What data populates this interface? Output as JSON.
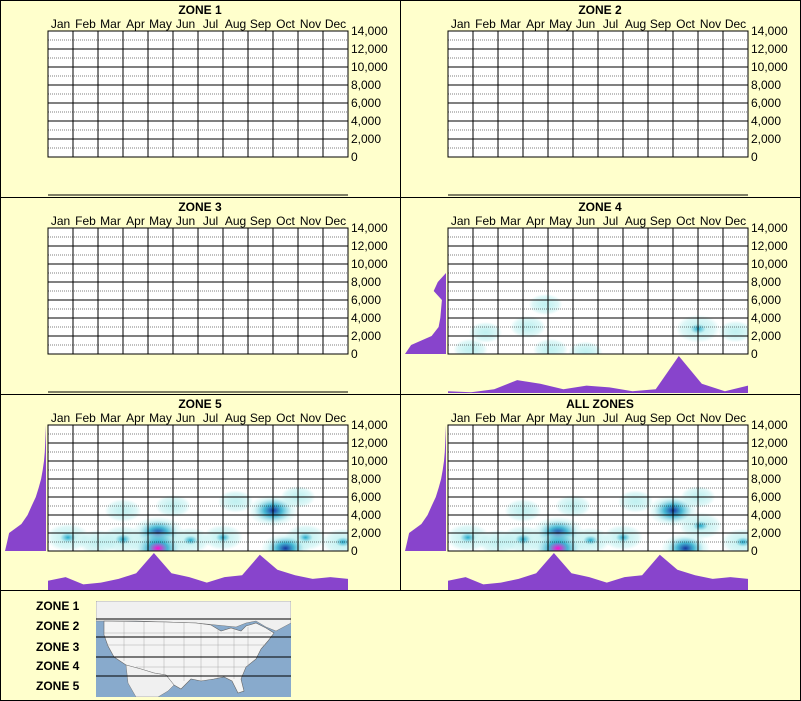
{
  "chart_data": {
    "type": "heatmap",
    "months": [
      "Jan",
      "Feb",
      "Mar",
      "Apr",
      "May",
      "Jun",
      "Jul",
      "Aug",
      "Sep",
      "Oct",
      "Nov",
      "Dec"
    ],
    "ylim": [
      0,
      14000
    ],
    "y_ticks": [
      "14,000",
      "12,000",
      "10,000",
      "8,000",
      "6,000",
      "4,000",
      "2,000",
      "0"
    ],
    "panels": [
      {
        "title": "ZONE 1",
        "has_data": false,
        "blobs": [],
        "month_profile": [],
        "elev_profile": []
      },
      {
        "title": "ZONE 2",
        "has_data": false,
        "blobs": [],
        "month_profile": [],
        "elev_profile": []
      },
      {
        "title": "ZONE 3",
        "has_data": false,
        "blobs": [],
        "month_profile": [],
        "elev_profile": []
      },
      {
        "title": "ZONE 4",
        "has_data": true,
        "blobs": [
          {
            "month": 2.7,
            "elev": 3000,
            "intensity": 0.15
          },
          {
            "month": 3.4,
            "elev": 5500,
            "intensity": 0.08
          },
          {
            "month": 0.4,
            "elev": 500,
            "intensity": 0.1
          },
          {
            "month": 1.0,
            "elev": 2400,
            "intensity": 0.06
          },
          {
            "month": 3.6,
            "elev": 500,
            "intensity": 0.12
          },
          {
            "month": 5.0,
            "elev": 200,
            "intensity": 0.1
          },
          {
            "month": 9.5,
            "elev": 2800,
            "intensity": 0.5
          },
          {
            "month": 11.0,
            "elev": 2500,
            "intensity": 0.1
          }
        ],
        "month_profile": [
          0.05,
          0.02,
          0.1,
          0.35,
          0.25,
          0.1,
          0.2,
          0.15,
          0.05,
          0.1,
          1.0,
          0.25,
          0.05,
          0.2
        ],
        "elev_profile": [
          1.0,
          0.85,
          0.35,
          0.18,
          0.14,
          0.12,
          0.1,
          0.3,
          0.2,
          0.0,
          0.0,
          0.0,
          0.0,
          0.0,
          0.0
        ]
      },
      {
        "title": "ZONE 5",
        "has_data": true,
        "blobs": [
          {
            "month": 0.3,
            "elev": 1500,
            "intensity": 0.5
          },
          {
            "month": 1.5,
            "elev": 1000,
            "intensity": 0.3
          },
          {
            "month": 2.5,
            "elev": 1300,
            "intensity": 0.5
          },
          {
            "month": 3.9,
            "elev": 2000,
            "intensity": 0.85
          },
          {
            "month": 3.9,
            "elev": 300,
            "intensity": 1.0
          },
          {
            "month": 5.2,
            "elev": 1200,
            "intensity": 0.35
          },
          {
            "month": 6.5,
            "elev": 1500,
            "intensity": 0.35
          },
          {
            "month": 8.5,
            "elev": 4500,
            "intensity": 0.75
          },
          {
            "month": 9.0,
            "elev": 300,
            "intensity": 0.7
          },
          {
            "month": 9.8,
            "elev": 1500,
            "intensity": 0.4
          },
          {
            "month": 11.3,
            "elev": 1000,
            "intensity": 0.45
          },
          {
            "month": 2.5,
            "elev": 4500,
            "intensity": 0.2
          },
          {
            "month": 4.5,
            "elev": 5000,
            "intensity": 0.15
          },
          {
            "month": 7.0,
            "elev": 5500,
            "intensity": 0.15
          },
          {
            "month": 9.5,
            "elev": 6000,
            "intensity": 0.12
          }
        ],
        "month_profile": [
          0.25,
          0.35,
          0.15,
          0.2,
          0.3,
          0.45,
          1.0,
          0.45,
          0.35,
          0.2,
          0.35,
          0.4,
          0.95,
          0.55,
          0.4,
          0.3,
          0.35,
          0.3
        ],
        "elev_profile": [
          1.0,
          0.95,
          0.9,
          0.6,
          0.45,
          0.35,
          0.25,
          0.18,
          0.12,
          0.08,
          0.05,
          0.03,
          0.02,
          0.01,
          0.0
        ]
      },
      {
        "title": "ALL ZONES",
        "has_data": true,
        "blobs": [
          {
            "month": 0.3,
            "elev": 1500,
            "intensity": 0.5
          },
          {
            "month": 1.5,
            "elev": 1000,
            "intensity": 0.3
          },
          {
            "month": 2.5,
            "elev": 1300,
            "intensity": 0.5
          },
          {
            "month": 3.9,
            "elev": 2000,
            "intensity": 0.85
          },
          {
            "month": 3.9,
            "elev": 300,
            "intensity": 1.0
          },
          {
            "month": 5.2,
            "elev": 1200,
            "intensity": 0.35
          },
          {
            "month": 6.5,
            "elev": 1500,
            "intensity": 0.35
          },
          {
            "month": 8.5,
            "elev": 4500,
            "intensity": 0.75
          },
          {
            "month": 9.0,
            "elev": 300,
            "intensity": 0.7
          },
          {
            "month": 9.6,
            "elev": 2800,
            "intensity": 0.45
          },
          {
            "month": 11.3,
            "elev": 1000,
            "intensity": 0.45
          },
          {
            "month": 2.5,
            "elev": 4500,
            "intensity": 0.2
          },
          {
            "month": 4.5,
            "elev": 5000,
            "intensity": 0.15
          },
          {
            "month": 7.0,
            "elev": 5500,
            "intensity": 0.15
          },
          {
            "month": 9.5,
            "elev": 6000,
            "intensity": 0.12
          }
        ],
        "month_profile": [
          0.25,
          0.35,
          0.15,
          0.2,
          0.3,
          0.45,
          1.0,
          0.45,
          0.35,
          0.2,
          0.35,
          0.4,
          0.95,
          0.55,
          0.4,
          0.3,
          0.35,
          0.3
        ],
        "elev_profile": [
          1.0,
          0.95,
          0.9,
          0.6,
          0.45,
          0.35,
          0.25,
          0.18,
          0.12,
          0.08,
          0.05,
          0.03,
          0.02,
          0.01,
          0.0
        ]
      }
    ]
  },
  "legend": {
    "zones": [
      "ZONE 1",
      "ZONE 2",
      "ZONE 3",
      "ZONE 4",
      "ZONE 5"
    ]
  },
  "colors": {
    "background": "#ffffcc",
    "profile_fill": "#8844cc",
    "heat_low": "#bdf0f0",
    "heat_mid": "#1aa6c9",
    "heat_high": "#0a2a9a",
    "heat_peak": "#ff00cc",
    "map_water": "#88aacc",
    "map_land": "#f4f4f4"
  }
}
